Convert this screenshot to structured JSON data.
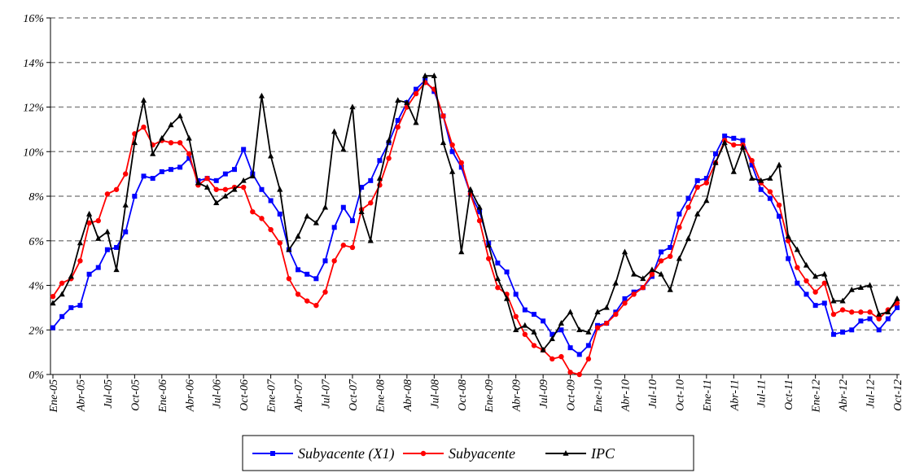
{
  "chart_data": {
    "type": "line",
    "categories": [
      "Ene-05",
      null,
      null,
      "Abr-05",
      null,
      null,
      "Jul-05",
      null,
      null,
      "Oct-05",
      null,
      null,
      "Ene-06",
      null,
      null,
      "Abr-06",
      null,
      null,
      "Jul-06",
      null,
      null,
      "Oct-06",
      null,
      null,
      "Ene-07",
      null,
      null,
      "Abr-07",
      null,
      null,
      "Jul-07",
      null,
      null,
      "Oct-07",
      null,
      null,
      "Ene-08",
      null,
      null,
      "Abr-08",
      null,
      null,
      "Jul-08",
      null,
      null,
      "Oct-08",
      null,
      null,
      "Ene-09",
      null,
      null,
      "Abr-09",
      null,
      null,
      "Jul-09",
      null,
      null,
      "Oct-09",
      null,
      null,
      "Ene-10",
      null,
      null,
      "Abr-10",
      null,
      null,
      "Jul-10",
      null,
      null,
      "Oct-10",
      null,
      null,
      "Ene-11",
      null,
      null,
      "Abr-11",
      null,
      null,
      "Jul-11",
      null,
      null,
      "Oct-11",
      null,
      null,
      "Ene-12",
      null,
      null,
      "Abr-12",
      null,
      null,
      "Jul-12",
      null,
      null,
      "Oct-12"
    ],
    "series": [
      {
        "name": "Subyacente (X1)",
        "color": "#0000ff",
        "marker": "square",
        "values": [
          2.1,
          2.6,
          3.0,
          3.1,
          4.5,
          4.8,
          5.6,
          5.7,
          6.4,
          8.0,
          8.9,
          8.8,
          9.1,
          9.2,
          9.3,
          9.7,
          8.7,
          8.8,
          8.7,
          9.0,
          9.2,
          10.1,
          9.0,
          8.3,
          7.8,
          7.2,
          5.6,
          4.7,
          4.5,
          4.3,
          5.1,
          6.6,
          7.5,
          6.9,
          8.4,
          8.7,
          9.6,
          10.4,
          11.4,
          12.2,
          12.8,
          13.2,
          12.7,
          11.6,
          10.0,
          9.3,
          8.1,
          7.3,
          5.9,
          5.0,
          4.6,
          3.6,
          2.9,
          2.7,
          2.4,
          1.8,
          2.0,
          1.2,
          0.9,
          1.3,
          2.2,
          2.3,
          2.8,
          3.4,
          3.7,
          3.9,
          4.4,
          5.5,
          5.7,
          7.2,
          7.9,
          8.7,
          8.8,
          9.9,
          10.7,
          10.6,
          10.5,
          9.4,
          8.3,
          7.9,
          7.1,
          5.2,
          4.1,
          3.6,
          3.1,
          3.2,
          1.8,
          1.9,
          2.0,
          2.4,
          2.5,
          2.0,
          2.5,
          3.0
        ]
      },
      {
        "name": "Subyacente",
        "color": "#ff0000",
        "marker": "circle",
        "values": [
          3.5,
          4.1,
          4.3,
          5.1,
          6.8,
          6.9,
          8.1,
          8.3,
          9.0,
          10.8,
          11.1,
          10.3,
          10.5,
          10.4,
          10.4,
          9.9,
          8.5,
          8.8,
          8.3,
          8.3,
          8.4,
          8.4,
          7.3,
          7.0,
          6.5,
          5.9,
          4.3,
          3.6,
          3.3,
          3.1,
          3.7,
          5.1,
          5.8,
          5.7,
          7.4,
          7.7,
          8.5,
          9.7,
          11.1,
          12.0,
          12.6,
          13.1,
          12.8,
          11.6,
          10.3,
          9.5,
          8.1,
          6.9,
          5.2,
          3.9,
          3.6,
          2.6,
          1.8,
          1.3,
          1.1,
          0.7,
          0.8,
          0.1,
          0.0,
          0.7,
          2.1,
          2.3,
          2.7,
          3.2,
          3.6,
          3.9,
          4.5,
          5.1,
          5.3,
          6.6,
          7.5,
          8.4,
          8.6,
          9.5,
          10.5,
          10.3,
          10.3,
          9.6,
          8.6,
          8.2,
          7.6,
          6.0,
          4.8,
          4.2,
          3.7,
          4.1,
          2.7,
          2.9,
          2.8,
          2.8,
          2.8,
          2.5,
          2.9,
          3.2
        ]
      },
      {
        "name": "IPC",
        "color": "#000000",
        "marker": "triangle",
        "values": [
          3.2,
          3.6,
          4.4,
          5.9,
          7.2,
          6.1,
          6.4,
          4.7,
          7.6,
          10.4,
          12.3,
          9.9,
          10.6,
          11.2,
          11.6,
          10.6,
          8.6,
          8.4,
          7.7,
          8.0,
          8.3,
          8.7,
          8.9,
          12.5,
          9.8,
          8.3,
          5.6,
          6.2,
          7.1,
          6.8,
          7.5,
          10.9,
          10.1,
          12.0,
          7.3,
          6.0,
          8.8,
          10.5,
          12.3,
          12.2,
          11.3,
          13.4,
          13.4,
          10.4,
          9.1,
          5.5,
          8.3,
          7.5,
          5.8,
          4.3,
          3.4,
          2.0,
          2.2,
          1.9,
          1.1,
          1.6,
          2.3,
          2.8,
          2.0,
          1.9,
          2.8,
          3.0,
          4.1,
          5.5,
          4.5,
          4.3,
          4.7,
          4.5,
          3.8,
          5.2,
          6.1,
          7.2,
          7.8,
          9.5,
          10.4,
          9.1,
          10.2,
          8.8,
          8.7,
          8.8,
          9.4,
          6.2,
          5.6,
          4.9,
          4.4,
          4.5,
          3.3,
          3.3,
          3.8,
          3.9,
          4.0,
          2.7,
          2.8,
          3.4
        ]
      }
    ],
    "ylim": [
      0,
      16
    ],
    "yticks": [
      {
        "value": 0,
        "label": "0%"
      },
      {
        "value": 2,
        "label": "2%"
      },
      {
        "value": 4,
        "label": "4%"
      },
      {
        "value": 6,
        "label": "6%"
      },
      {
        "value": 8,
        "label": "8%"
      },
      {
        "value": 10,
        "label": "10%"
      },
      {
        "value": 12,
        "label": "12%"
      },
      {
        "value": 14,
        "label": "14%"
      },
      {
        "value": 16,
        "label": "16%"
      }
    ],
    "grid": true,
    "legend": "bottom"
  }
}
